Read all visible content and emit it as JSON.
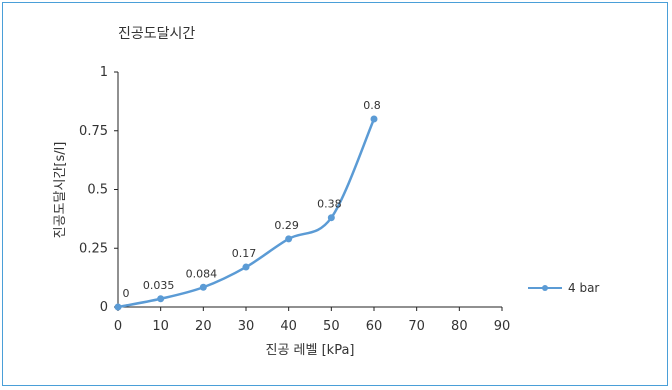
{
  "chart_data": {
    "type": "line",
    "title": "진공도달시간",
    "xlabel": "진공 레벨 [kPa]",
    "ylabel": "진공도달시간[s/l]",
    "xlim": [
      0,
      90
    ],
    "ylim": [
      0,
      1
    ],
    "x_ticks": [
      "0",
      "10",
      "20",
      "30",
      "40",
      "50",
      "60",
      "70",
      "80",
      "90"
    ],
    "y_ticks": [
      "0",
      "0.25",
      "0.5",
      "0.75",
      "1"
    ],
    "grid": false,
    "legend_position": "right",
    "series": [
      {
        "name": "4 bar",
        "color": "#5b9bd5",
        "x": [
          0,
          10,
          20,
          30,
          40,
          50,
          60
        ],
        "y": [
          0,
          0.035,
          0.084,
          0.17,
          0.29,
          0.38,
          0.8
        ],
        "labels": [
          "0",
          "0.035",
          "0.084",
          "0.17",
          "0.29",
          "0.38",
          "0.8"
        ]
      }
    ]
  }
}
